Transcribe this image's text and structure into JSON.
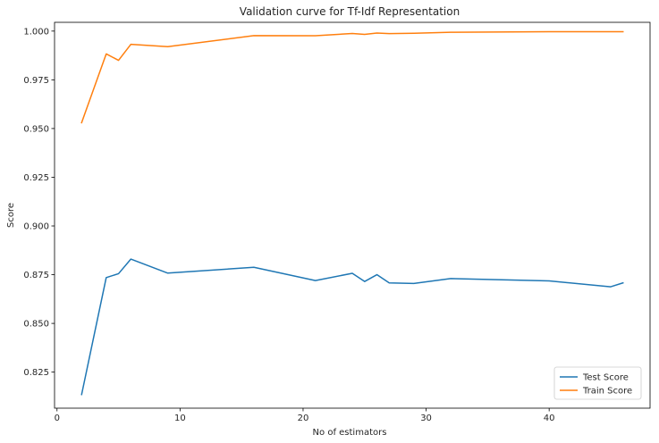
{
  "chart_data": {
    "type": "line",
    "title": "Validation curve for Tf-Idf Representation",
    "xlabel": "No of estimators",
    "ylabel": "Score",
    "xlim": [
      -0.2,
      48.2
    ],
    "ylim": [
      0.8065,
      1.0045
    ],
    "xticks": [
      0,
      10,
      20,
      30,
      40
    ],
    "yticks": [
      0.825,
      0.85,
      0.875,
      0.9,
      0.925,
      0.95,
      0.975,
      1.0
    ],
    "ytick_labels": [
      "0.825",
      "0.850",
      "0.875",
      "0.900",
      "0.925",
      "0.950",
      "0.975",
      "1.000"
    ],
    "grid": false,
    "legend": {
      "position": "lower-right"
    },
    "series": [
      {
        "name": "Test Score",
        "color": "#1f77b4",
        "x": [
          2,
          4,
          5,
          6,
          9,
          16,
          21,
          24,
          25,
          26,
          27,
          29,
          32,
          40,
          45,
          46
        ],
        "y": [
          0.8135,
          0.8735,
          0.8755,
          0.883,
          0.8758,
          0.8788,
          0.872,
          0.8757,
          0.8715,
          0.875,
          0.8708,
          0.8705,
          0.873,
          0.8718,
          0.8688,
          0.8708
        ]
      },
      {
        "name": "Train Score",
        "color": "#ff7f0e",
        "x": [
          2,
          4,
          5,
          6,
          9,
          16,
          21,
          24,
          25,
          26,
          27,
          29,
          32,
          40,
          45,
          46
        ],
        "y": [
          0.953,
          0.9883,
          0.985,
          0.9932,
          0.992,
          0.9977,
          0.9976,
          0.9988,
          0.9983,
          0.999,
          0.9987,
          0.9989,
          0.9994,
          0.9997,
          0.9997,
          0.9997
        ]
      }
    ]
  }
}
